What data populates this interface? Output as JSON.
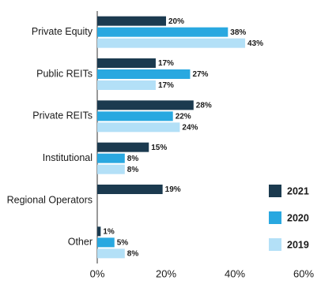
{
  "chart_data": {
    "type": "bar",
    "orientation": "horizontal",
    "categories": [
      "Private Equity",
      "Public REITs",
      "Private REITs",
      "Institutional",
      "Regional Operators",
      "Other"
    ],
    "series": [
      {
        "name": "2021",
        "color": "#1b3a4f",
        "values": [
          20,
          17,
          28,
          15,
          19,
          1
        ],
        "value_labels": [
          "20%",
          "17%",
          "28%",
          "15%",
          "19%",
          "1%"
        ]
      },
      {
        "name": "2020",
        "color": "#29a8e0",
        "values": [
          38,
          27,
          22,
          8,
          null,
          5
        ],
        "value_labels": [
          "38%",
          "27%",
          "22%",
          "8%",
          null,
          "5%"
        ]
      },
      {
        "name": "2019",
        "color": "#b3e0f7",
        "values": [
          43,
          17,
          24,
          8,
          null,
          8
        ],
        "value_labels": [
          "43%",
          "17%",
          "24%",
          "8%",
          null,
          "8%"
        ]
      }
    ],
    "xlim": [
      0,
      60
    ],
    "xticks": [
      {
        "value": 0,
        "label": "0%"
      },
      {
        "value": 20,
        "label": "20%"
      },
      {
        "value": 40,
        "label": "40%"
      },
      {
        "value": 60,
        "label": "60%"
      }
    ],
    "grid": false,
    "legend": "lower right"
  }
}
